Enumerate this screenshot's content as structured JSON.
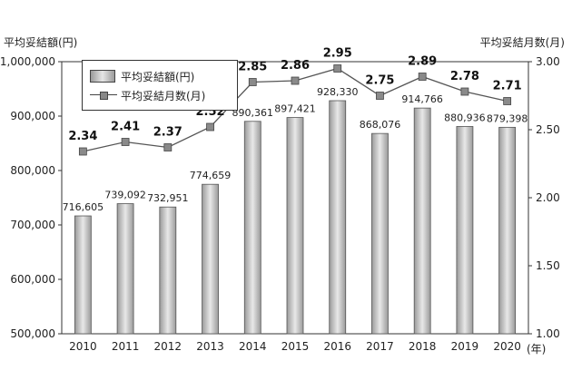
{
  "chart_data": {
    "type": "bar+line",
    "categories": [
      "2010",
      "2011",
      "2012",
      "2013",
      "2014",
      "2015",
      "2016",
      "2017",
      "2018",
      "2019",
      "2020"
    ],
    "x_unit_label": "(年)",
    "left_axis": {
      "title": "平均妥結額(円)",
      "range": [
        500000,
        1000000
      ],
      "ticks": [
        "500,000",
        "600,000",
        "700,000",
        "800,000",
        "900,000",
        "1,000,000"
      ]
    },
    "right_axis": {
      "title": "平均妥結月数(月)",
      "range": [
        1.0,
        3.0
      ],
      "ticks": [
        "1.00",
        "1.50",
        "2.00",
        "2.50",
        "3.00"
      ]
    },
    "series": [
      {
        "name": "平均妥結額(円)",
        "type": "bar",
        "axis": "left",
        "values": [
          716605,
          739092,
          732951,
          774659,
          890361,
          897421,
          928330,
          868076,
          914766,
          880936,
          879398
        ],
        "labels": [
          "716,605",
          "739,092",
          "732,951",
          "774,659",
          "890,361",
          "897,421",
          "928,330",
          "868,076",
          "914,766",
          "880,936",
          "879,398"
        ]
      },
      {
        "name": "平均妥結月数(月)",
        "type": "line",
        "axis": "right",
        "values": [
          2.34,
          2.41,
          2.37,
          2.52,
          2.85,
          2.86,
          2.95,
          2.75,
          2.89,
          2.78,
          2.71
        ],
        "labels": [
          "2.34",
          "2.41",
          "2.37",
          "2.52",
          "2.85",
          "2.86",
          "2.95",
          "2.75",
          "2.89",
          "2.78",
          "2.71"
        ]
      }
    ],
    "legend": "top-left",
    "grid": false,
    "colors": {
      "bar_dark": "#9a9a9a",
      "bar_light": "#e8e8e8",
      "line": "#555555",
      "marker": "#8a8a8a"
    }
  }
}
